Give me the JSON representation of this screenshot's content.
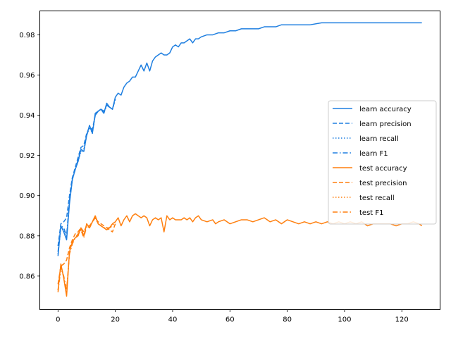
{
  "chart_data": {
    "type": "line",
    "title": "",
    "xlabel": "",
    "ylabel": "",
    "xlim": [
      -6.35,
      133.35
    ],
    "ylim": [
      0.8433,
      0.9919
    ],
    "x_ticks": [
      0,
      20,
      40,
      60,
      80,
      100,
      120
    ],
    "x_tick_labels": [
      "0",
      "20",
      "40",
      "60",
      "80",
      "100",
      "120"
    ],
    "y_ticks": [
      0.86,
      0.88,
      0.9,
      0.92,
      0.94,
      0.96,
      0.98
    ],
    "y_tick_labels": [
      "0.86",
      "0.88",
      "0.90",
      "0.92",
      "0.94",
      "0.96",
      "0.98"
    ],
    "grid": false,
    "legend_position": "center-right",
    "colors": {
      "learn": "#1f7fe0",
      "test": "#ff7f0e"
    },
    "series": [
      {
        "name": "learn accuracy",
        "group": "learn",
        "linestyle": "solid",
        "x": [
          0,
          1,
          2,
          3,
          4,
          5,
          6,
          7,
          8,
          9,
          10,
          11,
          12,
          13,
          14,
          15,
          16,
          17,
          18,
          19,
          20,
          21,
          22,
          23,
          24,
          25,
          26,
          27,
          28,
          29,
          30,
          31,
          32,
          33,
          34,
          35,
          36,
          37,
          38,
          39,
          40,
          41,
          42,
          43,
          44,
          45,
          46,
          47,
          48,
          49,
          50,
          52,
          54,
          56,
          58,
          60,
          62,
          64,
          66,
          68,
          70,
          72,
          74,
          76,
          78,
          80,
          84,
          88,
          92,
          96,
          100,
          104,
          108,
          112,
          116,
          120,
          124,
          127
        ],
        "y": [
          0.87,
          0.885,
          0.882,
          0.878,
          0.896,
          0.908,
          0.913,
          0.917,
          0.923,
          0.922,
          0.93,
          0.935,
          0.931,
          0.941,
          0.942,
          0.943,
          0.941,
          0.946,
          0.944,
          0.943,
          0.949,
          0.951,
          0.95,
          0.954,
          0.956,
          0.957,
          0.959,
          0.959,
          0.962,
          0.965,
          0.962,
          0.966,
          0.962,
          0.967,
          0.969,
          0.97,
          0.971,
          0.97,
          0.97,
          0.971,
          0.974,
          0.975,
          0.974,
          0.976,
          0.976,
          0.977,
          0.978,
          0.976,
          0.978,
          0.978,
          0.979,
          0.98,
          0.98,
          0.981,
          0.981,
          0.982,
          0.982,
          0.983,
          0.983,
          0.983,
          0.983,
          0.984,
          0.984,
          0.984,
          0.985,
          0.985,
          0.985,
          0.985,
          0.986,
          0.986,
          0.986,
          0.986,
          0.986,
          0.986,
          0.986,
          0.986,
          0.986,
          0.986
        ]
      },
      {
        "name": "learn precision",
        "group": "learn",
        "linestyle": "dashed",
        "x": [
          0,
          1,
          2,
          3,
          4,
          5,
          6,
          7,
          8,
          9,
          10,
          11,
          12,
          13,
          14,
          15,
          16,
          17,
          18,
          19,
          20
        ],
        "y": [
          0.875,
          0.886,
          0.887,
          0.889,
          0.9,
          0.909,
          0.914,
          0.919,
          0.924,
          0.925,
          0.931,
          0.934,
          0.933,
          0.94,
          0.942,
          0.943,
          0.942,
          0.945,
          0.944,
          0.943,
          0.948
        ]
      },
      {
        "name": "learn recall",
        "group": "learn",
        "linestyle": "dotted",
        "x": [
          0,
          1,
          2,
          3,
          4,
          5,
          6,
          7,
          8,
          9,
          10,
          11,
          12,
          13,
          14,
          15,
          16,
          17,
          18,
          19,
          20
        ],
        "y": [
          0.871,
          0.884,
          0.883,
          0.879,
          0.897,
          0.908,
          0.913,
          0.917,
          0.922,
          0.922,
          0.93,
          0.934,
          0.931,
          0.94,
          0.942,
          0.943,
          0.941,
          0.945,
          0.944,
          0.943,
          0.948
        ]
      },
      {
        "name": "learn F1",
        "group": "learn",
        "linestyle": "dashdot",
        "x": [
          0,
          1,
          2,
          3,
          4,
          5,
          6,
          7,
          8,
          9,
          10,
          11,
          12,
          13,
          14,
          15,
          16,
          17,
          18,
          19,
          20
        ],
        "y": [
          0.872,
          0.885,
          0.884,
          0.88,
          0.898,
          0.908,
          0.913,
          0.918,
          0.923,
          0.923,
          0.93,
          0.934,
          0.932,
          0.94,
          0.942,
          0.943,
          0.941,
          0.945,
          0.944,
          0.943,
          0.948
        ]
      },
      {
        "name": "test accuracy",
        "group": "test",
        "linestyle": "solid",
        "x": [
          0,
          1,
          2,
          3,
          4,
          5,
          6,
          7,
          8,
          9,
          10,
          11,
          12,
          13,
          14,
          15,
          16,
          17,
          18,
          19,
          20,
          21,
          22,
          23,
          24,
          25,
          26,
          27,
          28,
          29,
          30,
          31,
          32,
          33,
          34,
          35,
          36,
          37,
          38,
          39,
          40,
          41,
          42,
          43,
          44,
          45,
          46,
          47,
          48,
          49,
          50,
          52,
          54,
          55,
          56,
          58,
          60,
          62,
          64,
          66,
          68,
          70,
          72,
          74,
          76,
          78,
          80,
          82,
          84,
          86,
          88,
          90,
          92,
          94,
          96,
          98,
          100,
          102,
          104,
          106,
          108,
          110,
          112,
          114,
          116,
          118,
          120,
          122,
          124,
          126,
          127
        ],
        "y": [
          0.853,
          0.866,
          0.859,
          0.85,
          0.872,
          0.877,
          0.879,
          0.88,
          0.884,
          0.88,
          0.886,
          0.884,
          0.887,
          0.89,
          0.886,
          0.885,
          0.884,
          0.883,
          0.884,
          0.886,
          0.887,
          0.889,
          0.885,
          0.888,
          0.89,
          0.887,
          0.89,
          0.891,
          0.89,
          0.889,
          0.89,
          0.889,
          0.885,
          0.888,
          0.889,
          0.888,
          0.889,
          0.882,
          0.89,
          0.888,
          0.889,
          0.888,
          0.888,
          0.888,
          0.889,
          0.888,
          0.889,
          0.887,
          0.889,
          0.89,
          0.888,
          0.887,
          0.888,
          0.886,
          0.887,
          0.888,
          0.886,
          0.887,
          0.888,
          0.888,
          0.887,
          0.888,
          0.889,
          0.887,
          0.888,
          0.886,
          0.888,
          0.887,
          0.886,
          0.887,
          0.886,
          0.887,
          0.886,
          0.887,
          0.886,
          0.887,
          0.886,
          0.887,
          0.886,
          0.887,
          0.885,
          0.886,
          0.886,
          0.886,
          0.886,
          0.885,
          0.886,
          0.886,
          0.887,
          0.886,
          0.885
        ]
      },
      {
        "name": "test precision",
        "group": "test",
        "linestyle": "dashed",
        "x": [
          0,
          1,
          2,
          3,
          4,
          5,
          6,
          7,
          8,
          9,
          10,
          11,
          12,
          13,
          14,
          15,
          16,
          17,
          18,
          19,
          20
        ],
        "y": [
          0.856,
          0.865,
          0.866,
          0.868,
          0.874,
          0.878,
          0.881,
          0.882,
          0.884,
          0.882,
          0.885,
          0.885,
          0.887,
          0.889,
          0.887,
          0.886,
          0.885,
          0.884,
          0.883,
          0.882,
          0.886
        ]
      },
      {
        "name": "test recall",
        "group": "test",
        "linestyle": "dotted",
        "x": [
          0,
          1,
          2,
          3,
          4,
          5,
          6,
          7,
          8,
          9,
          10,
          11,
          12,
          13,
          14,
          15,
          16,
          17,
          18,
          19,
          20
        ],
        "y": [
          0.853,
          0.866,
          0.859,
          0.851,
          0.872,
          0.877,
          0.879,
          0.88,
          0.884,
          0.88,
          0.886,
          0.884,
          0.887,
          0.89,
          0.886,
          0.885,
          0.884,
          0.883,
          0.884,
          0.886,
          0.887
        ]
      },
      {
        "name": "test F1",
        "group": "test",
        "linestyle": "dashdot",
        "x": [
          0,
          1,
          2,
          3,
          4,
          5,
          6,
          7,
          8,
          9,
          10,
          11,
          12,
          13,
          14,
          15,
          16,
          17,
          18,
          19,
          20
        ],
        "y": [
          0.852,
          0.864,
          0.86,
          0.853,
          0.871,
          0.876,
          0.879,
          0.881,
          0.883,
          0.879,
          0.885,
          0.884,
          0.887,
          0.889,
          0.886,
          0.885,
          0.884,
          0.884,
          0.884,
          0.885,
          0.887
        ]
      }
    ]
  }
}
